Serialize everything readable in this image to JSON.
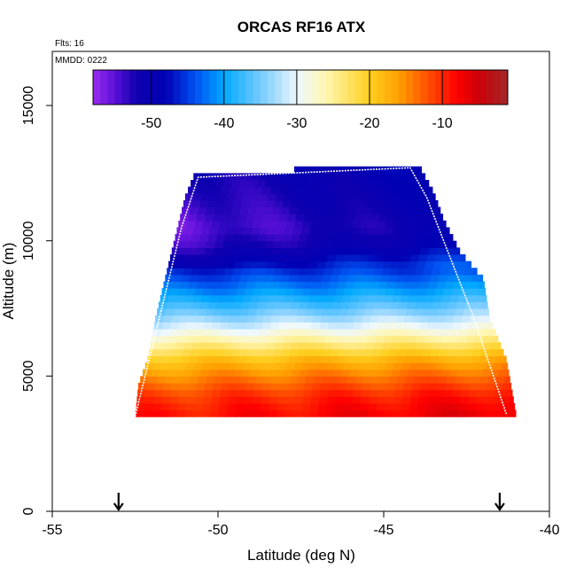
{
  "chart_data": {
    "type": "heatmap",
    "title": "ORCAS RF16 ATX",
    "annotations": {
      "flights": "Flts: 16",
      "date": "MMDD: 0222"
    },
    "xlabel": "Latitude (deg N)",
    "ylabel": "Altitude (m)",
    "xlim": [
      -55,
      -40
    ],
    "ylim": [
      0,
      17000
    ],
    "xticks": [
      -55,
      -50,
      -45,
      -40
    ],
    "yticks": [
      0,
      5000,
      10000,
      15000
    ],
    "colorbar": {
      "range": [
        -58,
        -1
      ],
      "ticks": [
        -50,
        -40,
        -30,
        -20,
        -10
      ],
      "stops": [
        {
          "v": -58,
          "c": "#9b2cf0"
        },
        {
          "v": -55,
          "c": "#5a10d8"
        },
        {
          "v": -52,
          "c": "#0f00b0"
        },
        {
          "v": -48,
          "c": "#0000b4"
        },
        {
          "v": -44,
          "c": "#0050f0"
        },
        {
          "v": -40,
          "c": "#00a8ff"
        },
        {
          "v": -34,
          "c": "#8cd2ff"
        },
        {
          "v": -30,
          "c": "#eef8ff"
        },
        {
          "v": -26,
          "c": "#fff6b0"
        },
        {
          "v": -20,
          "c": "#ffd020"
        },
        {
          "v": -16,
          "c": "#ffa000"
        },
        {
          "v": -12,
          "c": "#ff5000"
        },
        {
          "v": -8,
          "c": "#ff0000"
        },
        {
          "v": -5,
          "c": "#cc0008"
        },
        {
          "v": -1,
          "c": "#a02828"
        }
      ]
    },
    "temperature_profile": [
      {
        "alt": 3700,
        "t": -8
      },
      {
        "alt": 4300,
        "t": -10
      },
      {
        "alt": 5000,
        "t": -14
      },
      {
        "alt": 5600,
        "t": -18
      },
      {
        "alt": 6200,
        "t": -24
      },
      {
        "alt": 6800,
        "t": -30
      },
      {
        "alt": 7500,
        "t": -36
      },
      {
        "alt": 8200,
        "t": -41
      },
      {
        "alt": 9000,
        "t": -46
      },
      {
        "alt": 9800,
        "t": -51
      },
      {
        "alt": 10500,
        "t": -53
      },
      {
        "alt": 11200,
        "t": -52
      },
      {
        "alt": 12700,
        "t": -50
      }
    ],
    "coverage": {
      "lower_altitude": 3500,
      "left_edge": [
        {
          "alt": 3500,
          "lat": -52.5
        },
        {
          "alt": 4700,
          "lat": -52.4
        },
        {
          "alt": 5700,
          "lat": -52.1
        },
        {
          "alt": 7100,
          "lat": -51.9
        },
        {
          "alt": 8600,
          "lat": -51.6
        },
        {
          "alt": 9600,
          "lat": -51.4
        },
        {
          "alt": 10600,
          "lat": -51.2
        },
        {
          "alt": 11600,
          "lat": -51.0
        },
        {
          "alt": 12500,
          "lat": -50.7
        }
      ],
      "right_edge": [
        {
          "alt": 3500,
          "lat": -41.0
        },
        {
          "alt": 5600,
          "lat": -41.3
        },
        {
          "alt": 7100,
          "lat": -41.8
        },
        {
          "alt": 8600,
          "lat": -42.0
        },
        {
          "alt": 9600,
          "lat": -42.7
        },
        {
          "alt": 10800,
          "lat": -43.2
        },
        {
          "alt": 11800,
          "lat": -43.5
        },
        {
          "alt": 12700,
          "lat": -43.9
        }
      ],
      "top_edge": [
        {
          "lat": -50.7,
          "alt": 12500
        },
        {
          "lat": -49.0,
          "alt": 12500
        },
        {
          "lat": -46.9,
          "alt": 12700
        },
        {
          "lat": -43.9,
          "alt": 12700
        }
      ]
    },
    "flight_track": [
      {
        "lat": -52.5,
        "alt": 3500
      },
      {
        "lat": -51.1,
        "alt": 10500
      },
      {
        "lat": -50.6,
        "alt": 12350
      },
      {
        "lat": -44.2,
        "alt": 12700
      },
      {
        "lat": -43.7,
        "alt": 11600
      },
      {
        "lat": -42.3,
        "alt": 7200
      },
      {
        "lat": -41.3,
        "alt": 3600
      }
    ],
    "markers": [
      {
        "lat": -53.0,
        "label": "arrow"
      },
      {
        "lat": -41.5,
        "label": "arrow"
      }
    ]
  }
}
